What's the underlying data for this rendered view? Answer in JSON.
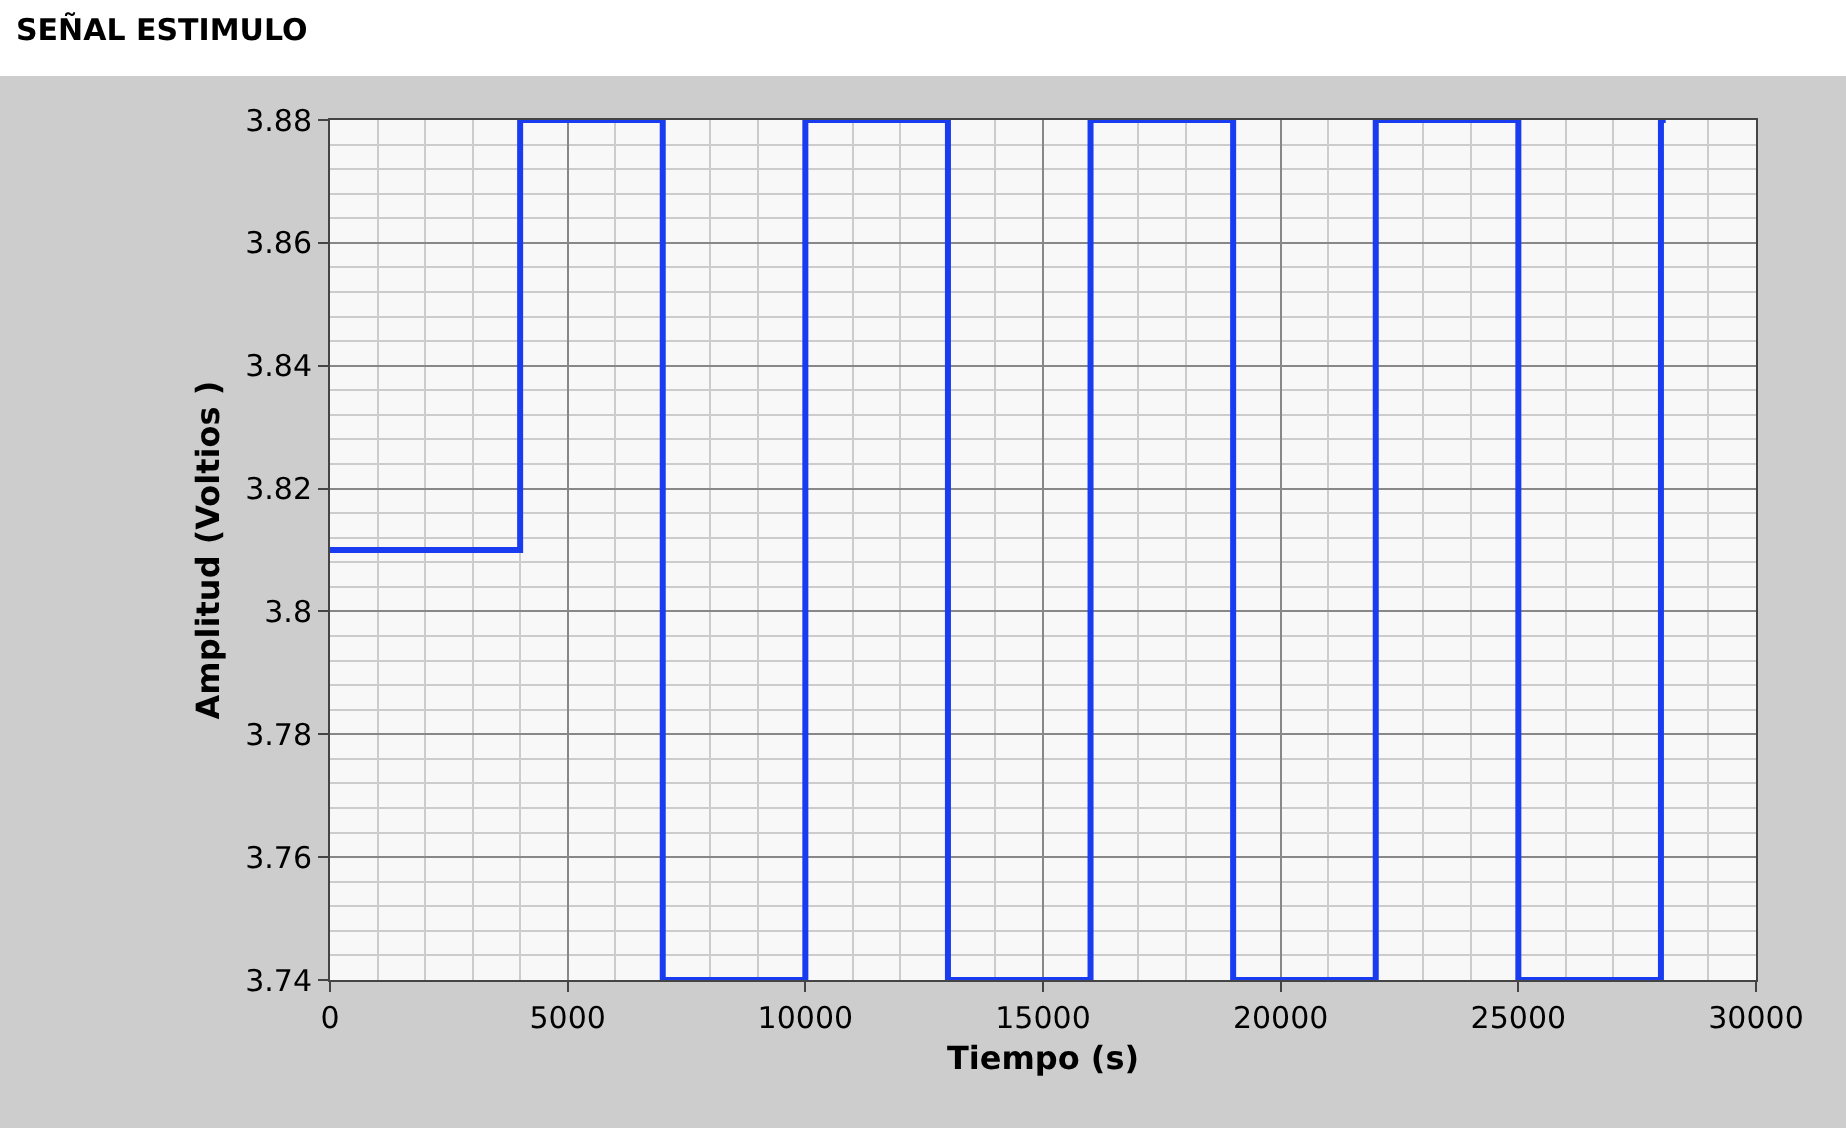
{
  "chart_data": {
    "type": "step",
    "title": "SEÑAL ESTIMULO",
    "xlabel": "Tiempo (s)",
    "ylabel": "Amplitud (Voltios )",
    "x": [
      0,
      4000,
      7000,
      10000,
      13000,
      16000,
      19000,
      22000,
      25000,
      28000,
      28100
    ],
    "series": [
      {
        "color": "#1a3cf0",
        "values": [
          3.81,
          3.88,
          3.74,
          3.88,
          3.74,
          3.88,
          3.74,
          3.88,
          3.74,
          3.88,
          3.88
        ]
      }
    ],
    "xlim": [
      0,
      30000
    ],
    "xticks": [
      0,
      5000,
      10000,
      15000,
      20000,
      25000,
      30000
    ],
    "ylim": [
      3.74,
      3.88
    ],
    "yticks": [
      3.74,
      3.76,
      3.78,
      3.8,
      3.82,
      3.84,
      3.86,
      3.88
    ],
    "grid": true,
    "marker": "none",
    "line_style": "solid"
  }
}
